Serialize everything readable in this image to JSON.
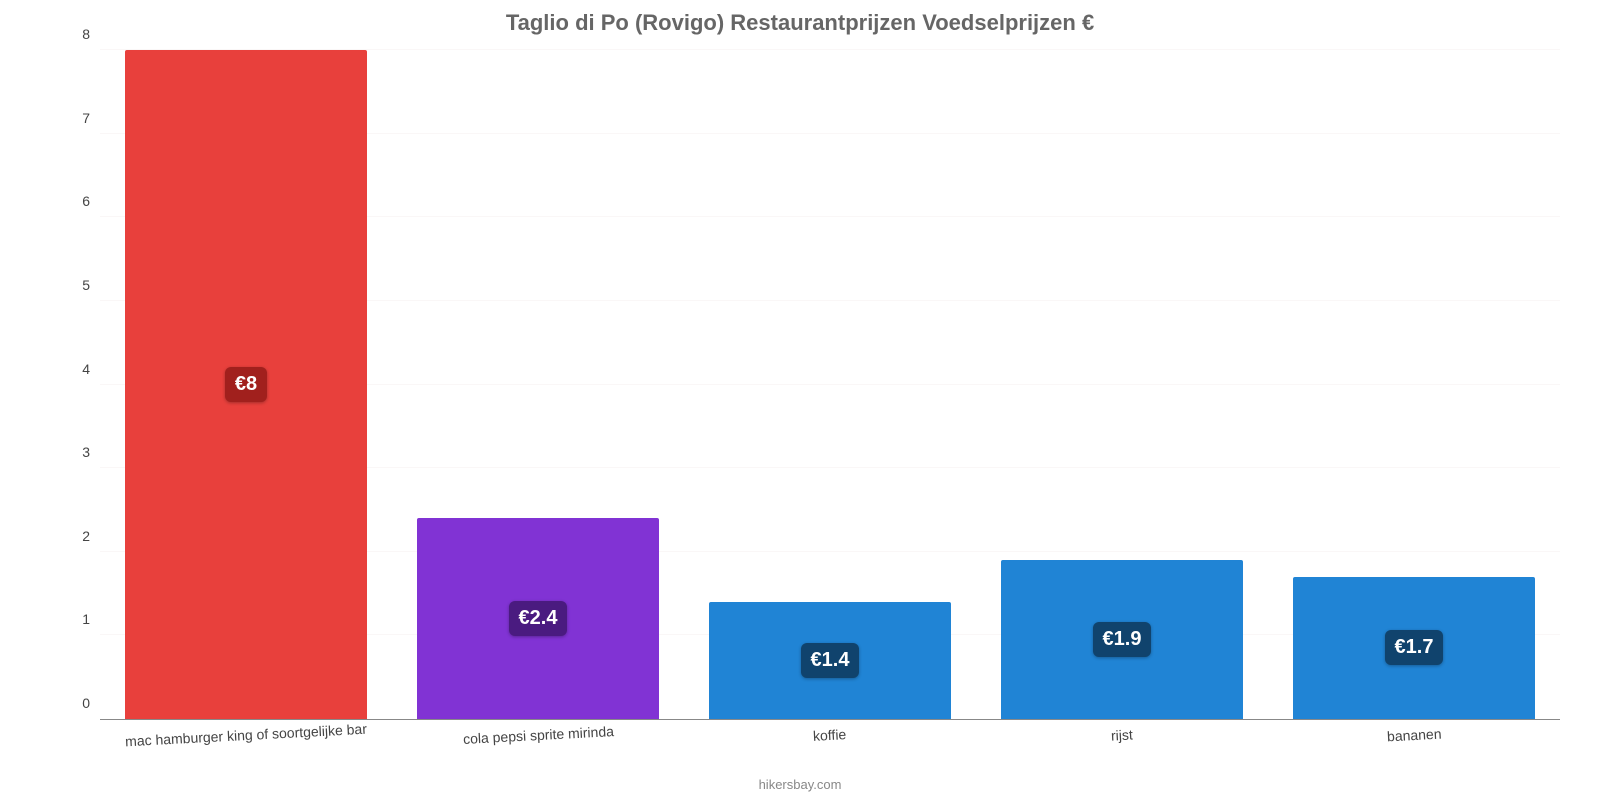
{
  "chart": {
    "type": "bar",
    "title": "Taglio di Po (Rovigo) Restaurantprijzen Voedselprijzen €",
    "title_color": "#666666",
    "title_fontsize": 22,
    "background_color": "#ffffff",
    "grid_color": "#faf7f7",
    "axis_color": "#888888",
    "tick_color": "#444444",
    "tick_fontsize": 14,
    "ylim": [
      0,
      8
    ],
    "ytick_step": 1,
    "yticks": [
      "0",
      "1",
      "2",
      "3",
      "4",
      "5",
      "6",
      "7",
      "8"
    ],
    "bar_width_pct": 83,
    "value_label_fontsize": 20,
    "value_label_text_color": "#ffffff",
    "categories": [
      "mac hamburger king of soortgelijke bar",
      "cola pepsi sprite mirinda",
      "koffie",
      "rijst",
      "bananen"
    ],
    "values": [
      8,
      2.4,
      1.4,
      1.9,
      1.7
    ],
    "value_labels": [
      "€8",
      "€2.4",
      "€1.4",
      "€1.9",
      "€1.7"
    ],
    "bar_colors": [
      "#e8403c",
      "#8133d4",
      "#2084d5",
      "#2084d5",
      "#2084d5"
    ],
    "label_bg_colors": [
      "#a1201d",
      "#4a1b80",
      "#10436d",
      "#10436d",
      "#10436d"
    ],
    "credit": "hikersbay.com",
    "credit_color": "#888888",
    "xlabel_rotation_deg": -3
  }
}
